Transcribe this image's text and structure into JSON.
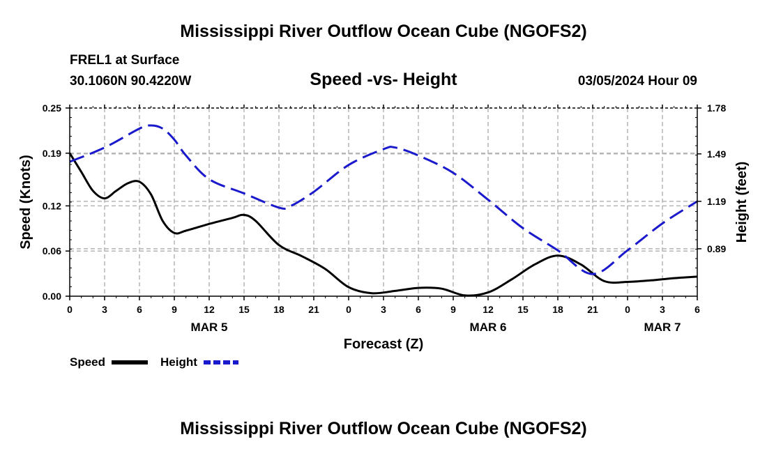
{
  "header": {
    "title": "Mississippi River Outflow Ocean Cube (NGOFS2)",
    "station": "FREL1 at Surface",
    "coords": "30.1060N  90.4220W",
    "subtitle": "Speed -vs- Height",
    "datetime": "03/05/2024 Hour 09"
  },
  "footer": {
    "title": "Mississippi River Outflow Ocean Cube (NGOFS2)"
  },
  "chart_data": {
    "type": "line",
    "title": "Speed -vs- Height",
    "xlabel": "Forecast (Z)",
    "ylabel_left": "Speed (Knots)",
    "ylabel_right": "Height (feet)",
    "xlim": [
      0,
      54
    ],
    "ylim_left": [
      0,
      0.25
    ],
    "ylim_right": [
      0.59,
      1.78
    ],
    "x_ticks": [
      0,
      3,
      6,
      9,
      12,
      15,
      18,
      21,
      24,
      27,
      30,
      33,
      36,
      39,
      42,
      45,
      48,
      51,
      54
    ],
    "x_tick_labels": [
      "0",
      "3",
      "6",
      "9",
      "12",
      "15",
      "18",
      "21",
      "0",
      "3",
      "6",
      "9",
      "12",
      "15",
      "18",
      "21",
      "0",
      "3",
      "6"
    ],
    "day_labels": [
      {
        "label": "MAR 5",
        "x": 12
      },
      {
        "label": "MAR 6",
        "x": 36
      },
      {
        "label": "MAR 7",
        "x": 51
      }
    ],
    "y_left_ticks": [
      0.0,
      0.06,
      0.12,
      0.19,
      0.25
    ],
    "y_left_tick_labels": [
      "0.00",
      "0.06",
      "0.12",
      "0.19",
      "0.25"
    ],
    "y_right_ticks": [
      0.89,
      1.19,
      1.49,
      1.78
    ],
    "y_right_tick_labels": [
      "0.89",
      "1.19",
      "1.49",
      "1.78"
    ],
    "grid": true,
    "series": [
      {
        "name": "Speed",
        "axis": "left",
        "color": "#000000",
        "style": "solid",
        "x": [
          0,
          1,
          2,
          3,
          4,
          5,
          6,
          7,
          8,
          9,
          10,
          12,
          14,
          15,
          16,
          18,
          20,
          22,
          24,
          26,
          28,
          30,
          32,
          34,
          36,
          38,
          40,
          42,
          44,
          46,
          48,
          50,
          52,
          54
        ],
        "values": [
          0.19,
          0.165,
          0.14,
          0.13,
          0.14,
          0.15,
          0.152,
          0.135,
          0.1,
          0.084,
          0.087,
          0.096,
          0.104,
          0.108,
          0.1,
          0.068,
          0.053,
          0.036,
          0.012,
          0.004,
          0.007,
          0.011,
          0.01,
          0.001,
          0.005,
          0.022,
          0.042,
          0.054,
          0.042,
          0.02,
          0.019,
          0.021,
          0.024,
          0.026
        ]
      },
      {
        "name": "Height",
        "axis": "right",
        "color": "#1a1acc",
        "style": "dashed",
        "x": [
          0,
          3,
          6,
          7,
          8,
          9,
          10,
          12,
          15,
          18,
          19,
          21,
          24,
          27,
          28,
          30,
          33,
          36,
          39,
          42,
          45,
          48,
          51,
          54
        ],
        "values": [
          1.44,
          1.53,
          1.65,
          1.67,
          1.65,
          1.58,
          1.48,
          1.33,
          1.24,
          1.15,
          1.16,
          1.25,
          1.42,
          1.52,
          1.53,
          1.48,
          1.37,
          1.2,
          1.02,
          0.88,
          0.73,
          0.88,
          1.05,
          1.19
        ]
      }
    ],
    "legend": [
      {
        "label": "Speed",
        "series": "Speed"
      },
      {
        "label": "Height",
        "series": "Height"
      }
    ]
  }
}
